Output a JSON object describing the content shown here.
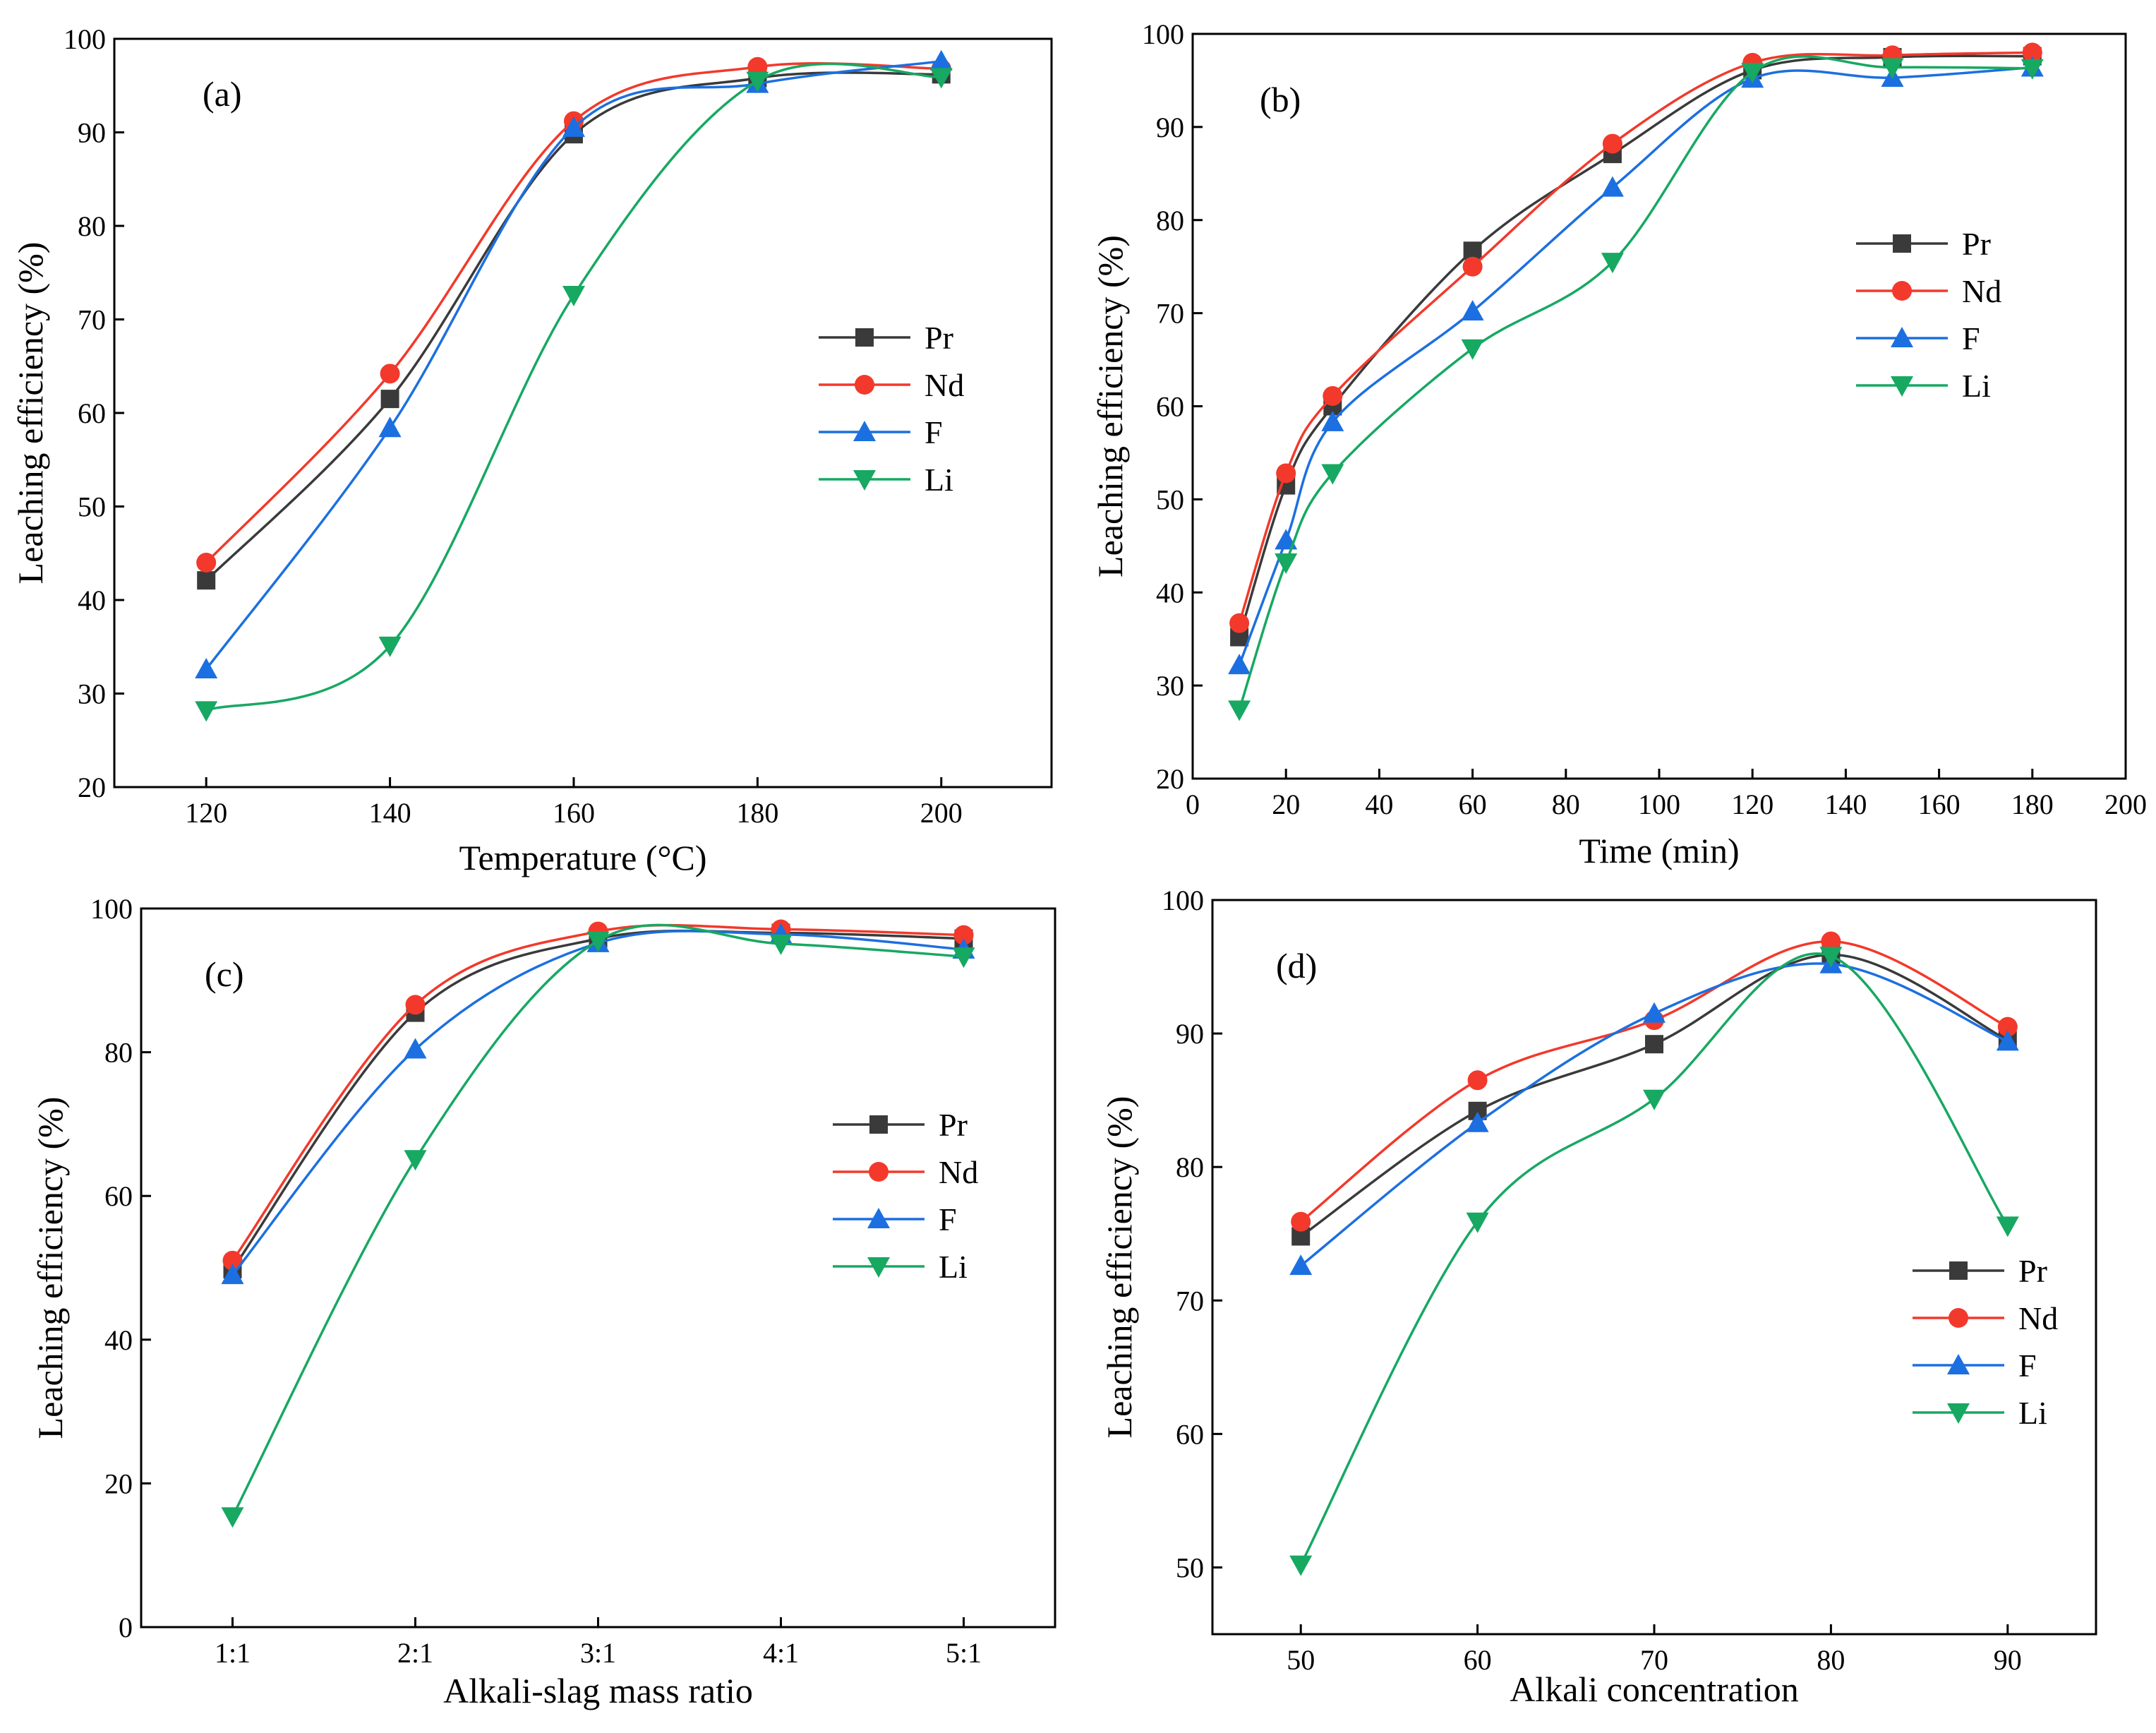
{
  "series_styles": [
    {
      "name": "Pr",
      "color": "#3a3a3a",
      "marker": "square"
    },
    {
      "name": "Nd",
      "color": "#f2392b",
      "marker": "circle"
    },
    {
      "name": "F",
      "color": "#1c6fe0",
      "marker": "triangle-up"
    },
    {
      "name": "Li",
      "color": "#17a862",
      "marker": "triangle-down"
    }
  ],
  "chart_data": [
    {
      "type": "line",
      "panel_label": "(a)",
      "xlabel": "Temperature (°C)",
      "ylabel": "Leaching efficiency (%)",
      "xlim": [
        110,
        212
      ],
      "ylim": [
        20,
        100
      ],
      "xticks": [
        120,
        140,
        160,
        180,
        200
      ],
      "xtick_labels": [
        "120",
        "140",
        "160",
        "180",
        "200"
      ],
      "yticks": [
        20,
        30,
        40,
        50,
        60,
        70,
        80,
        90,
        100
      ],
      "x": [
        120,
        140,
        160,
        180,
        200
      ],
      "legend": "center-right",
      "series": [
        {
          "name": "Pr",
          "values": [
            42.1,
            61.5,
            89.8,
            95.8,
            96.2
          ]
        },
        {
          "name": "Nd",
          "values": [
            44.0,
            64.2,
            91.2,
            97.0,
            96.8
          ]
        },
        {
          "name": "F",
          "values": [
            32.6,
            58.4,
            90.5,
            95.2,
            97.6
          ]
        },
        {
          "name": "Li",
          "values": [
            28.2,
            35.1,
            72.6,
            95.5,
            95.9
          ]
        }
      ]
    },
    {
      "type": "line",
      "panel_label": "(b)",
      "xlabel": "Time (min)",
      "ylabel": "Leaching efficiency (%)",
      "xlim": [
        0,
        200
      ],
      "ylim": [
        20,
        100
      ],
      "xticks": [
        0,
        20,
        40,
        60,
        80,
        100,
        120,
        140,
        160,
        180,
        200
      ],
      "xtick_labels": [
        "0",
        "20",
        "40",
        "60",
        "80",
        "100",
        "120",
        "140",
        "160",
        "180",
        "200"
      ],
      "yticks": [
        20,
        30,
        40,
        50,
        60,
        70,
        80,
        90,
        100
      ],
      "x": [
        10,
        20,
        30,
        60,
        90,
        120,
        150,
        180
      ],
      "legend": "center-right",
      "series": [
        {
          "name": "Pr",
          "values": [
            35.2,
            51.5,
            60.0,
            76.7,
            87.1,
            96.1,
            97.5,
            97.6
          ]
        },
        {
          "name": "Nd",
          "values": [
            36.7,
            52.8,
            61.1,
            75.0,
            88.2,
            96.9,
            97.7,
            98.0
          ]
        },
        {
          "name": "F",
          "values": [
            32.2,
            45.6,
            58.3,
            70.2,
            83.5,
            95.2,
            95.3,
            96.4
          ]
        },
        {
          "name": "Li",
          "values": [
            27.4,
            43.2,
            52.8,
            66.2,
            75.5,
            95.9,
            96.4,
            96.3
          ]
        }
      ]
    },
    {
      "type": "line",
      "panel_label": "(c)",
      "xlabel": "Alkali-slag mass ratio",
      "ylabel": "Leaching efficiency (%)",
      "xlim": [
        0.5,
        5.5
      ],
      "ylim": [
        0,
        100
      ],
      "xticks": [
        1,
        2,
        3,
        4,
        5
      ],
      "xtick_labels": [
        "1:1",
        "2:1",
        "3:1",
        "4:1",
        "5:1"
      ],
      "yticks": [
        0,
        20,
        40,
        60,
        80,
        100
      ],
      "x": [
        1,
        2,
        3,
        4,
        5
      ],
      "legend": "center-right",
      "series": [
        {
          "name": "Pr",
          "values": [
            49.8,
            85.5,
            95.8,
            96.6,
            95.8
          ]
        },
        {
          "name": "Nd",
          "values": [
            51.0,
            86.6,
            96.8,
            97.1,
            96.3
          ]
        },
        {
          "name": "F",
          "values": [
            49.0,
            80.4,
            95.2,
            96.4,
            94.3
          ]
        },
        {
          "name": "Li",
          "values": [
            15.4,
            65.1,
            95.5,
            95.1,
            93.3
          ]
        }
      ]
    },
    {
      "type": "line",
      "panel_label": "(d)",
      "xlabel": "Alkali concentration",
      "ylabel": "Leaching efficiency (%)",
      "xlim": [
        45,
        95
      ],
      "ylim": [
        45,
        100
      ],
      "xticks": [
        50,
        60,
        70,
        80,
        90
      ],
      "xtick_labels": [
        "50",
        "60",
        "70",
        "80",
        "90"
      ],
      "yticks": [
        50,
        60,
        70,
        80,
        90,
        100
      ],
      "x": [
        50,
        60,
        70,
        80,
        90
      ],
      "legend": "lower-right",
      "series": [
        {
          "name": "Pr",
          "values": [
            74.8,
            84.2,
            89.2,
            95.9,
            89.5
          ]
        },
        {
          "name": "Nd",
          "values": [
            75.9,
            86.5,
            91.0,
            96.9,
            90.5
          ]
        },
        {
          "name": "F",
          "values": [
            72.6,
            83.3,
            91.5,
            95.2,
            89.4
          ]
        },
        {
          "name": "Li",
          "values": [
            50.2,
            75.9,
            85.1,
            95.8,
            75.6
          ]
        }
      ]
    }
  ]
}
